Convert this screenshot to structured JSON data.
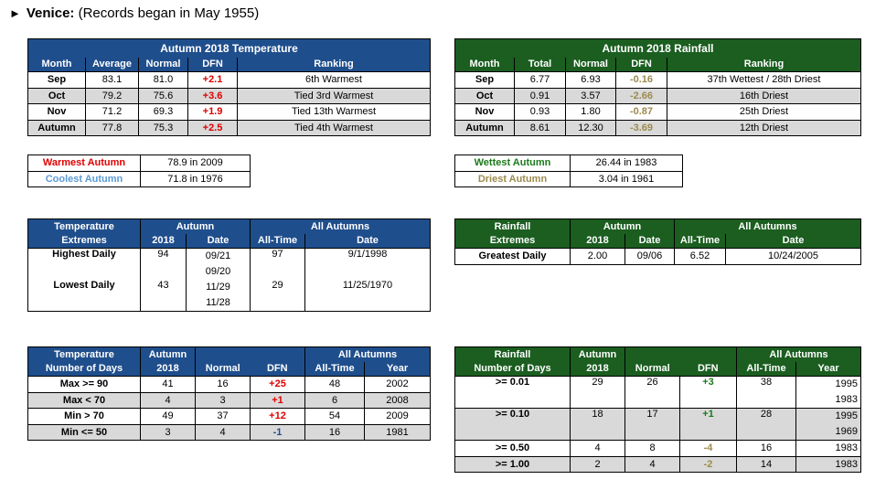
{
  "title": {
    "arrow": "►",
    "station": "Venice:",
    "note": "(Records began in May 1955)"
  },
  "temp": {
    "caption": "Autumn 2018 Temperature",
    "headers": [
      "Month",
      "Average",
      "Normal",
      "DFN",
      "Ranking"
    ],
    "rows": [
      [
        "Sep",
        "83.1",
        "81.0",
        "+2.1",
        "6th Warmest"
      ],
      [
        "Oct",
        "79.2",
        "75.6",
        "+3.6",
        "Tied 3rd Warmest"
      ],
      [
        "Nov",
        "71.2",
        "69.3",
        "+1.9",
        "Tied 13th Warmest"
      ],
      [
        "Autumn",
        "77.8",
        "75.3",
        "+2.5",
        "Tied 4th Warmest"
      ]
    ]
  },
  "rain": {
    "caption": "Autumn 2018 Rainfall",
    "headers": [
      "Month",
      "Total",
      "Normal",
      "DFN",
      "Ranking"
    ],
    "rows": [
      [
        "Sep",
        "6.77",
        "6.93",
        "-0.16",
        "37th Wettest / 28th Driest"
      ],
      [
        "Oct",
        "0.91",
        "3.57",
        "-2.66",
        "16th Driest"
      ],
      [
        "Nov",
        "0.93",
        "1.80",
        "-0.87",
        "25th Driest"
      ],
      [
        "Autumn",
        "8.61",
        "12.30",
        "-3.69",
        "12th Driest"
      ]
    ]
  },
  "temp_records": {
    "warm_label": "Warmest Autumn",
    "warm_val": "78.9 in 2009",
    "cool_label": "Coolest Autumn",
    "cool_val": "71.8 in 1976"
  },
  "rain_records": {
    "wet_label": "Wettest Autumn",
    "wet_val": "26.44 in 1983",
    "dry_label": "Driest Autumn",
    "dry_val": "3.04 in 1961"
  },
  "temp_ext": {
    "h1": "Temperature",
    "h2": "Extremes",
    "autumn": "Autumn",
    "all": "All Autumns",
    "sub": [
      "2018",
      "Date",
      "All-Time",
      "Date"
    ],
    "hi": {
      "label": "Highest Daily",
      "v": "94",
      "d1": "09/21",
      "d2": "09/20",
      "at": "97",
      "ad": "9/1/1998"
    },
    "lo": {
      "label": "Lowest Daily",
      "v": "43",
      "d1": "11/29",
      "d2": "11/28",
      "at": "29",
      "ad": "11/25/1970"
    }
  },
  "rain_ext": {
    "h1": "Rainfall",
    "h2": "Extremes",
    "autumn": "Autumn",
    "all": "All Autumns",
    "sub": [
      "2018",
      "Date",
      "All-Time",
      "Date"
    ],
    "row": {
      "label": "Greatest Daily",
      "v": "2.00",
      "d": "09/06",
      "at": "6.52",
      "ad": "10/24/2005"
    }
  },
  "temp_days": {
    "h1": "Temperature",
    "h2": "Number of Days",
    "autumn": "Autumn",
    "y": "2018",
    "normal": "Normal",
    "dfn": "DFN",
    "all": "All Autumns",
    "at": "All-Time",
    "year": "Year",
    "rows": [
      [
        "Max >= 90",
        "41",
        "16",
        "+25",
        "48",
        "2002"
      ],
      [
        "Max < 70",
        "4",
        "3",
        "+1",
        "6",
        "2008"
      ],
      [
        "Min > 70",
        "49",
        "37",
        "+12",
        "54",
        "2009"
      ],
      [
        "Min <= 50",
        "3",
        "4",
        "-1",
        "16",
        "1981"
      ]
    ]
  },
  "rain_days": {
    "h1": "Rainfall",
    "h2": "Number of Days",
    "autumn": "Autumn",
    "y": "2018",
    "normal": "Normal",
    "dfn": "DFN",
    "all": "All Autumns",
    "at": "All-Time",
    "year": "Year",
    "r1": {
      "label": ">= 0.01",
      "v": "29",
      "n": "26",
      "d": "+3",
      "a": "38",
      "y1": "1995",
      "y2": "1983"
    },
    "r2": {
      "label": ">= 0.10",
      "v": "18",
      "n": "17",
      "d": "+1",
      "a": "28",
      "y1": "1995",
      "y2": "1969"
    },
    "r3": {
      "label": ">= 0.50",
      "v": "4",
      "n": "8",
      "d": "-4",
      "a": "16",
      "y1": "1983"
    },
    "r4": {
      "label": ">= 1.00",
      "v": "2",
      "n": "4",
      "d": "-2",
      "a": "14",
      "y1": "1983"
    }
  }
}
